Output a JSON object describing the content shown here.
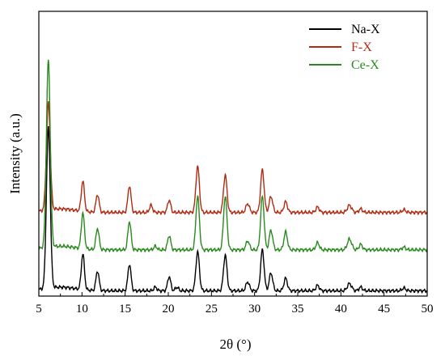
{
  "chart_data": {
    "type": "line",
    "title": "",
    "xlabel": "2θ (°)",
    "ylabel": "Intensity (a.u.)",
    "xlim": [
      5,
      50
    ],
    "x_ticks": [
      5,
      10,
      15,
      20,
      25,
      30,
      35,
      40,
      45,
      50
    ],
    "y_ticks_shown": false,
    "grid": false,
    "legend": "top-right",
    "series": [
      {
        "name": "Na-X",
        "color": "#000000",
        "baseline": 3,
        "y_offset": 0,
        "peaks": [
          [
            6.1,
            90,
            0.22
          ],
          [
            10.1,
            20,
            0.18
          ],
          [
            11.8,
            11,
            0.18
          ],
          [
            15.5,
            15,
            0.18
          ],
          [
            18.5,
            2,
            0.18
          ],
          [
            20.1,
            8,
            0.18
          ],
          [
            21.0,
            2,
            0.18
          ],
          [
            23.4,
            22,
            0.2
          ],
          [
            26.6,
            20,
            0.2
          ],
          [
            29.2,
            5,
            0.2
          ],
          [
            30.9,
            23,
            0.2
          ],
          [
            31.9,
            10,
            0.2
          ],
          [
            33.6,
            7,
            0.2
          ],
          [
            37.3,
            3,
            0.2
          ],
          [
            41.0,
            4,
            0.25
          ],
          [
            42.3,
            2,
            0.2
          ],
          [
            47.3,
            1.5,
            0.2
          ]
        ]
      },
      {
        "name": "F-X",
        "color": "#b22a12",
        "baseline": 3,
        "y_offset": 44,
        "peaks": [
          [
            6.1,
            60,
            0.22
          ],
          [
            10.1,
            17,
            0.18
          ],
          [
            11.8,
            10,
            0.18
          ],
          [
            15.5,
            15,
            0.18
          ],
          [
            18.0,
            4,
            0.18
          ],
          [
            20.1,
            7,
            0.18
          ],
          [
            23.4,
            26,
            0.2
          ],
          [
            26.6,
            21,
            0.2
          ],
          [
            29.2,
            5,
            0.2
          ],
          [
            30.9,
            24,
            0.2
          ],
          [
            31.9,
            9,
            0.2
          ],
          [
            33.6,
            6,
            0.2
          ],
          [
            37.3,
            3,
            0.2
          ],
          [
            41.0,
            4,
            0.25
          ],
          [
            42.3,
            2,
            0.2
          ],
          [
            47.3,
            1.5,
            0.2
          ]
        ]
      },
      {
        "name": "Ce-X",
        "color": "#2a8a1e",
        "baseline": 3,
        "y_offset": 23,
        "peaks": [
          [
            6.1,
            105,
            0.22
          ],
          [
            10.1,
            20,
            0.18
          ],
          [
            11.8,
            12,
            0.18
          ],
          [
            15.5,
            16,
            0.18
          ],
          [
            18.5,
            2,
            0.18
          ],
          [
            20.1,
            8,
            0.18
          ],
          [
            23.4,
            30,
            0.2
          ],
          [
            26.6,
            30,
            0.2
          ],
          [
            29.2,
            5,
            0.2
          ],
          [
            30.9,
            30,
            0.2
          ],
          [
            31.9,
            11,
            0.2
          ],
          [
            33.6,
            10,
            0.2
          ],
          [
            37.3,
            4,
            0.2
          ],
          [
            41.0,
            6,
            0.25
          ],
          [
            42.3,
            3,
            0.2
          ],
          [
            47.3,
            1.5,
            0.2
          ]
        ]
      }
    ]
  }
}
